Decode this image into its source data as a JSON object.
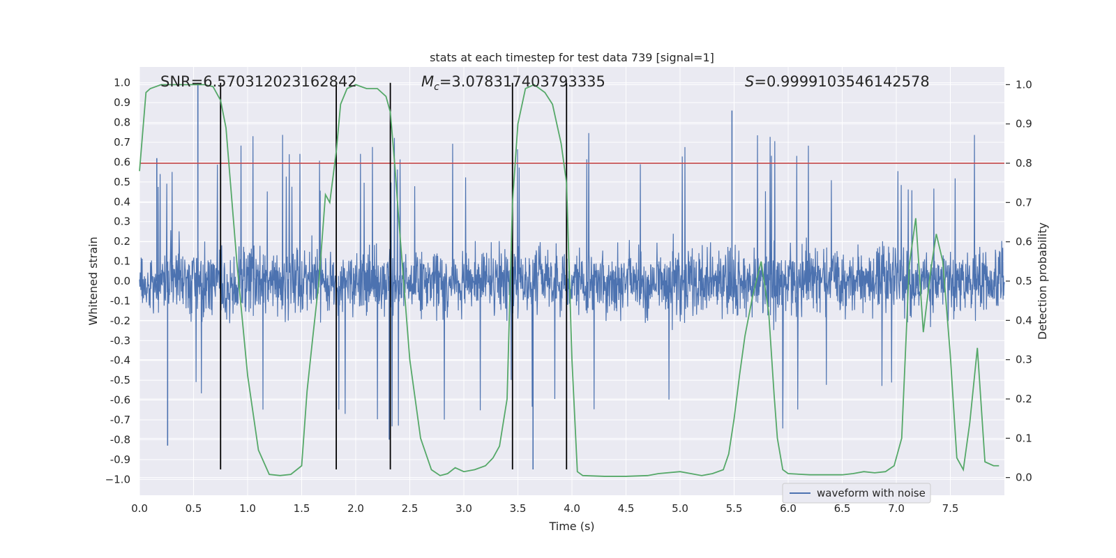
{
  "chart_data": {
    "type": "line",
    "title": "stats at each timestep for test data 739 [signal=1]",
    "xlabel": "Time (s)",
    "ylabel": "Whitened strain",
    "y2label": "Detection probability",
    "xlim": [
      0,
      8
    ],
    "ylim": [
      -1.08,
      1.08
    ],
    "y2lim": [
      -0.045,
      1.045
    ],
    "xticks": [
      "0.0",
      "0.5",
      "1.0",
      "1.5",
      "2.0",
      "2.5",
      "3.0",
      "3.5",
      "4.0",
      "4.5",
      "5.0",
      "5.5",
      "6.0",
      "6.5",
      "7.0",
      "7.5"
    ],
    "yticks": [
      "1.0",
      "0.9",
      "0.8",
      "0.7",
      "0.6",
      "0.5",
      "0.4",
      "0.3",
      "0.2",
      "0.1",
      "0.0",
      "-0.1",
      "-0.2",
      "-0.3",
      "-0.4",
      "-0.5",
      "-0.6",
      "-0.7",
      "-0.8",
      "-0.9",
      "−1.0"
    ],
    "y2ticks": [
      "1.0",
      "0.9",
      "0.8",
      "0.7",
      "0.6",
      "0.5",
      "0.4",
      "0.3",
      "0.2",
      "0.1",
      "0.0"
    ],
    "annotations": {
      "snr": "SNR=6.570312023162842",
      "mc_symbol": "M",
      "mc_sub": "c",
      "mc_value": "=3.078317403793335",
      "s_symbol": "S",
      "s_value": "=0.9999103546142578"
    },
    "threshold": {
      "y2": 0.8,
      "color": "#c44e52"
    },
    "vlines": {
      "x": [
        0.75,
        1.82,
        2.32,
        3.45,
        3.95
      ],
      "ymin": -0.95,
      "ymax": 1.0,
      "color": "#000000"
    },
    "series": [
      {
        "name": "waveform with noise",
        "color": "#4c72b0",
        "description_noise": "dense whitened strain trace",
        "x_range": [
          0,
          8
        ],
        "typical_envelope": [
          -0.4,
          0.45
        ],
        "spikes": [
          {
            "x": 0.54,
            "y": 1.0
          },
          {
            "x": 0.26,
            "y": -0.83
          },
          {
            "x": 3.64,
            "y": -0.95
          },
          {
            "x": 2.31,
            "y": -0.8
          },
          {
            "x": 5.48,
            "y": 0.86
          },
          {
            "x": 0.16,
            "y": 0.62
          }
        ]
      },
      {
        "name": "Detection probability",
        "axis": "y2",
        "color": "#55a868",
        "x": [
          0.0,
          0.06,
          0.1,
          0.2,
          0.3,
          0.4,
          0.5,
          0.6,
          0.68,
          0.75,
          0.8,
          0.9,
          1.0,
          1.1,
          1.2,
          1.3,
          1.4,
          1.5,
          1.55,
          1.6,
          1.66,
          1.72,
          1.76,
          1.82,
          1.86,
          1.92,
          2.0,
          2.1,
          2.2,
          2.28,
          2.32,
          2.36,
          2.4,
          2.5,
          2.6,
          2.7,
          2.78,
          2.85,
          2.92,
          3.0,
          3.1,
          3.2,
          3.27,
          3.33,
          3.4,
          3.45,
          3.5,
          3.57,
          3.65,
          3.75,
          3.82,
          3.9,
          3.95,
          4.0,
          4.05,
          4.1,
          4.3,
          4.5,
          4.7,
          4.8,
          5.0,
          5.1,
          5.2,
          5.3,
          5.4,
          5.45,
          5.5,
          5.55,
          5.6,
          5.67,
          5.75,
          5.82,
          5.87,
          5.9,
          5.95,
          6.0,
          6.2,
          6.4,
          6.5,
          6.6,
          6.7,
          6.8,
          6.9,
          6.98,
          7.05,
          7.12,
          7.18,
          7.25,
          7.32,
          7.37,
          7.43,
          7.5,
          7.56,
          7.62,
          7.68,
          7.75,
          7.82,
          7.9,
          7.95
        ],
        "values": [
          0.78,
          0.98,
          0.99,
          1.0,
          1.0,
          1.0,
          1.0,
          1.0,
          0.995,
          0.96,
          0.89,
          0.55,
          0.26,
          0.07,
          0.008,
          0.005,
          0.008,
          0.03,
          0.22,
          0.35,
          0.5,
          0.72,
          0.7,
          0.83,
          0.95,
          0.99,
          1.0,
          0.99,
          0.99,
          0.97,
          0.93,
          0.8,
          0.65,
          0.3,
          0.1,
          0.02,
          0.005,
          0.01,
          0.025,
          0.015,
          0.02,
          0.03,
          0.05,
          0.08,
          0.2,
          0.7,
          0.9,
          0.99,
          1.0,
          0.98,
          0.95,
          0.85,
          0.75,
          0.3,
          0.015,
          0.005,
          0.003,
          0.003,
          0.005,
          0.01,
          0.015,
          0.01,
          0.005,
          0.01,
          0.02,
          0.06,
          0.15,
          0.26,
          0.36,
          0.46,
          0.55,
          0.42,
          0.21,
          0.1,
          0.02,
          0.01,
          0.007,
          0.007,
          0.007,
          0.01,
          0.015,
          0.012,
          0.015,
          0.03,
          0.1,
          0.54,
          0.66,
          0.37,
          0.53,
          0.62,
          0.55,
          0.31,
          0.05,
          0.02,
          0.14,
          0.33,
          0.04,
          0.03,
          0.03
        ]
      }
    ],
    "legend": {
      "placement": "bottom-right",
      "entries": [
        "waveform with noise"
      ]
    },
    "grid": true,
    "colors": {
      "background": "#eaeaf2",
      "grid": "#ffffff"
    }
  }
}
